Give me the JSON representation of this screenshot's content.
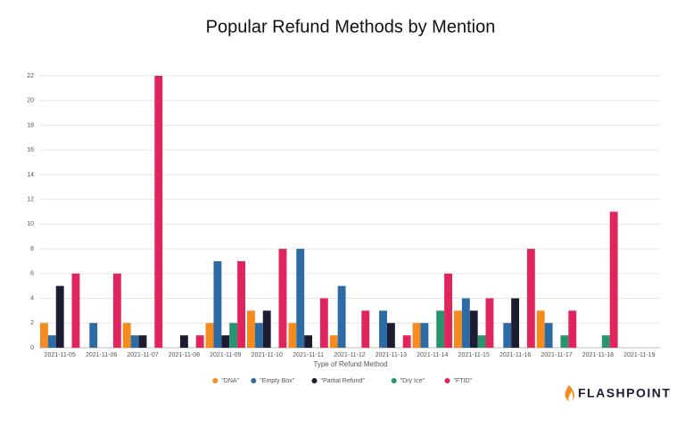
{
  "chart_data": {
    "type": "bar",
    "title": "Popular Refund Methods by Mention",
    "x_label": "Type of Refund Method",
    "categories": [
      "2021-11-05",
      "2021-11-06",
      "2021-11-07",
      "2021-11-08",
      "2021-11-09",
      "2021-11-10",
      "2021-11-11",
      "2021-11-12",
      "2021-11-13",
      "2021-11-14",
      "2021-11-15",
      "2021-11-16",
      "2021-11-17",
      "2021-11-18",
      "2021-11-19"
    ],
    "series": [
      {
        "name": "\"DNA\"",
        "color": "#f58a1f",
        "values": [
          2,
          0,
          2,
          0,
          2,
          3,
          2,
          1,
          0,
          2,
          3,
          0,
          3,
          0,
          0
        ]
      },
      {
        "name": "\"Empty Box\"",
        "color": "#2c6ba4",
        "values": [
          1,
          2,
          1,
          0,
          7,
          2,
          8,
          5,
          3,
          2,
          4,
          2,
          2,
          0,
          0
        ]
      },
      {
        "name": "\"Partial Refund\"",
        "color": "#1c1d33",
        "values": [
          5,
          0,
          1,
          1,
          1,
          3,
          1,
          0,
          2,
          0,
          3,
          4,
          0,
          0,
          0
        ]
      },
      {
        "name": "\"Dry Ice\"",
        "color": "#2a9470",
        "values": [
          0,
          0,
          0,
          0,
          2,
          0,
          0,
          0,
          0,
          3,
          1,
          0,
          1,
          1,
          0
        ]
      },
      {
        "name": "\"FTID\"",
        "color": "#e0245e",
        "values": [
          6,
          6,
          22,
          1,
          7,
          8,
          4,
          3,
          1,
          6,
          4,
          8,
          3,
          11,
          0
        ]
      }
    ],
    "ylim": [
      0,
      22
    ],
    "yticks": [
      0,
      2,
      4,
      6,
      8,
      10,
      12,
      14,
      16,
      18,
      20,
      22
    ],
    "grid": true,
    "legend": "bottom",
    "brand": "FLASHPOINT"
  }
}
